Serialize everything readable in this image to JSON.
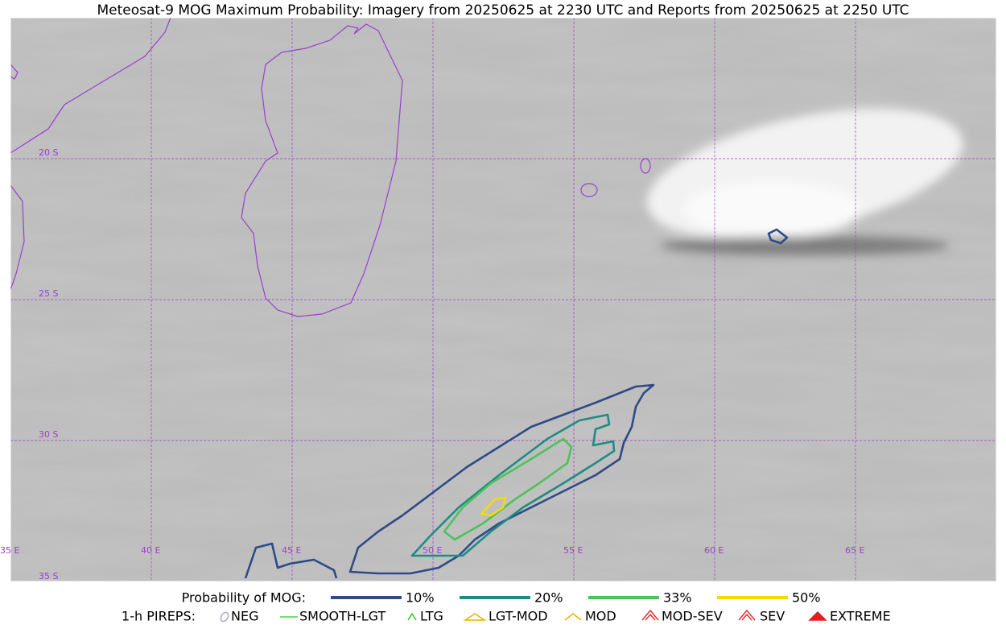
{
  "title": "Meteosat-9 MOG Maximum Probability: Imagery from 20250625 at 2230 UTC and Reports from 20250625 at 2250 UTC",
  "map": {
    "lat_labels": [
      "20 S",
      "25 S",
      "30 S",
      "35 S"
    ],
    "lon_labels": [
      "35 E",
      "40 E",
      "45 E",
      "50 E",
      "55 E",
      "60 E",
      "65 E"
    ]
  },
  "legend": {
    "probability": {
      "title": "Probability of MOG:",
      "items": [
        {
          "label": "10%",
          "color": "#2e4a87"
        },
        {
          "label": "20%",
          "color": "#1f8c82"
        },
        {
          "label": "33%",
          "color": "#4cc25a"
        },
        {
          "label": "50%",
          "color": "#f5d90a"
        }
      ]
    },
    "pireps": {
      "title": "1-h PIREPS:",
      "items": [
        "NEG",
        "SMOOTH-LGT",
        "LTG",
        "LGT-MOD",
        "MOD",
        "MOD-SEV",
        "SEV",
        "EXTREME"
      ]
    }
  }
}
